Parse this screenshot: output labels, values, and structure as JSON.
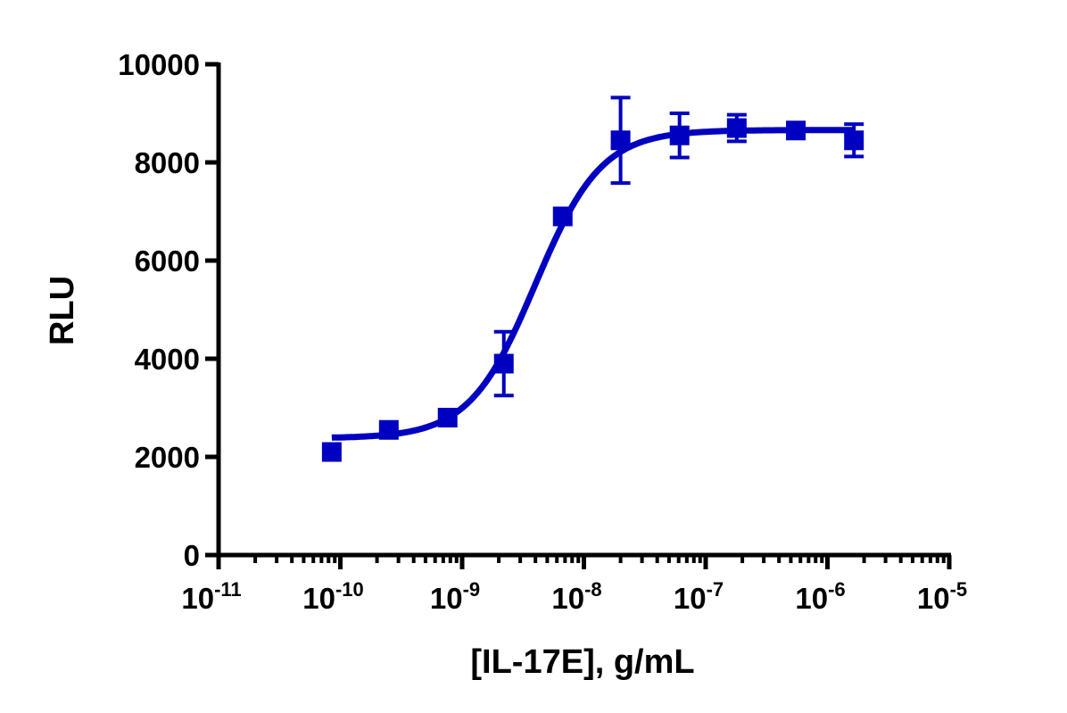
{
  "chart_data": {
    "type": "scatter",
    "title": "",
    "xlabel": "[IL-17E], g/mL",
    "ylabel": "RLU",
    "xscale": "log",
    "xlim": [
      1e-11,
      1e-05
    ],
    "ylim": [
      0,
      10000
    ],
    "grid": false,
    "legend": null,
    "x_ticks": [
      {
        "base": "10",
        "exp": "-11",
        "value": 1e-11
      },
      {
        "base": "10",
        "exp": "-10",
        "value": 1e-10
      },
      {
        "base": "10",
        "exp": "-9",
        "value": 1e-09
      },
      {
        "base": "10",
        "exp": "-8",
        "value": 1e-08
      },
      {
        "base": "10",
        "exp": "-7",
        "value": 1e-07
      },
      {
        "base": "10",
        "exp": "-6",
        "value": 1e-06
      },
      {
        "base": "10",
        "exp": "-5",
        "value": 1e-05
      }
    ],
    "y_ticks": [
      "0",
      "2000",
      "4000",
      "6000",
      "8000",
      "10000"
    ],
    "color": "#0000c0",
    "series": [
      {
        "name": "IL-17E",
        "marker": "square",
        "x": [
          8.5e-11,
          2.5e-10,
          7.6e-10,
          2.2e-09,
          6.7e-09,
          2e-08,
          6.1e-08,
          1.8e-07,
          5.5e-07,
          1.65e-06
        ],
        "y": [
          2100,
          2550,
          2800,
          3900,
          6900,
          8450,
          8550,
          8700,
          8650,
          8450
        ],
        "error": [
          0,
          0,
          0,
          650,
          0,
          870,
          450,
          270,
          0,
          330
        ]
      }
    ],
    "fit": {
      "model": "4PL",
      "bottom": 2380,
      "top": 8660,
      "ec50": 4e-09,
      "hill": 1.6,
      "x_range": [
        8.5e-11,
        1.65e-06
      ]
    }
  }
}
